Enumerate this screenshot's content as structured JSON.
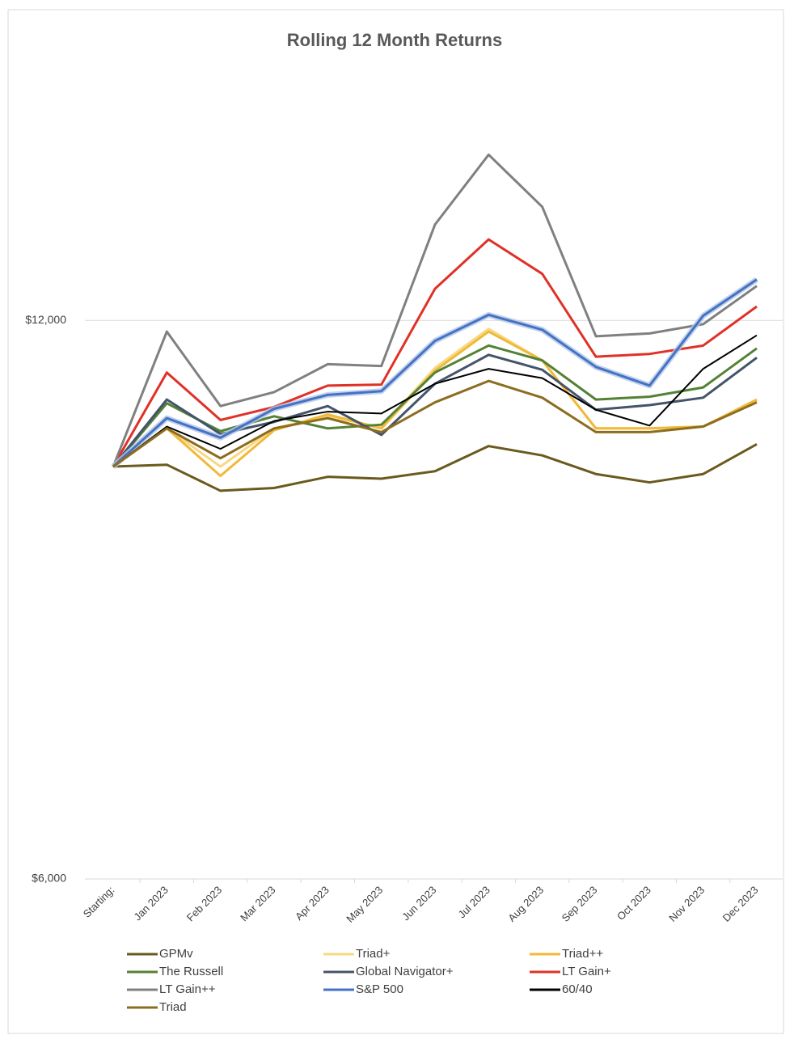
{
  "chart_data": {
    "type": "line",
    "title": "Rolling 12 Month Returns",
    "categories": [
      "Starting:",
      "Jan 2023",
      "Feb 2023",
      "Mar 2023",
      "Apr 2023",
      "May 2023",
      "Jun 2023",
      "Jul 2023",
      "Aug 2023",
      "Sep 2023",
      "Oct 2023",
      "Nov 2023",
      "Dec 2023"
    ],
    "ylim": [
      6000,
      14000
    ],
    "yticks": [
      {
        "value": 6000,
        "label": "$6,000"
      },
      {
        "value": 12000,
        "label": "$12,000"
      }
    ],
    "grid": true,
    "legend": "bottom",
    "series": [
      {
        "name": "GPMv",
        "color": "#6b5a1e",
        "values": [
          10430,
          10450,
          10170,
          10200,
          10320,
          10300,
          10380,
          10650,
          10550,
          10350,
          10260,
          10350,
          10670
        ]
      },
      {
        "name": "Triad+",
        "color": "#f7d983",
        "values": [
          10430,
          10840,
          10430,
          10840,
          10970,
          10850,
          11490,
          11910,
          11570,
          10840,
          10840,
          10860,
          11140
        ]
      },
      {
        "name": "Triad++",
        "color": "#f0b93a",
        "values": [
          10430,
          10840,
          10330,
          10820,
          10990,
          10840,
          11460,
          11880,
          11570,
          10840,
          10840,
          10860,
          11150
        ]
      },
      {
        "name": "The Russell",
        "color": "#548235",
        "values": [
          10430,
          11110,
          10810,
          10970,
          10840,
          10880,
          11440,
          11730,
          11570,
          11150,
          11180,
          11280,
          11700
        ]
      },
      {
        "name": "Global Navigator+",
        "color": "#44546a",
        "values": [
          10430,
          11150,
          10780,
          10910,
          11080,
          10770,
          11320,
          11630,
          11470,
          11040,
          11090,
          11170,
          11600
        ]
      },
      {
        "name": "LT Gain+",
        "color": "#e03127",
        "values": [
          10430,
          11440,
          10930,
          11070,
          11300,
          11310,
          12340,
          12870,
          12500,
          11610,
          11640,
          11730,
          12150
        ]
      },
      {
        "name": "LT Gain++",
        "color": "#808080",
        "values": [
          10430,
          11880,
          11080,
          11230,
          11530,
          11510,
          13030,
          13780,
          13220,
          11830,
          11860,
          11960,
          12370
        ]
      },
      {
        "name": "S&P 500",
        "color": "#4472c4",
        "values": [
          10430,
          10950,
          10740,
          11050,
          11200,
          11240,
          11780,
          12060,
          11900,
          11500,
          11300,
          12050,
          12440
        ]
      },
      {
        "name": "60/40",
        "color": "#000000",
        "values": [
          10430,
          10860,
          10620,
          10920,
          11020,
          11000,
          11320,
          11480,
          11380,
          11040,
          10870,
          11480,
          11840
        ]
      },
      {
        "name": "Triad",
        "color": "#8c6d1f",
        "values": [
          10430,
          10840,
          10520,
          10840,
          10950,
          10800,
          11120,
          11350,
          11170,
          10800,
          10800,
          10860,
          11120
        ]
      }
    ]
  }
}
